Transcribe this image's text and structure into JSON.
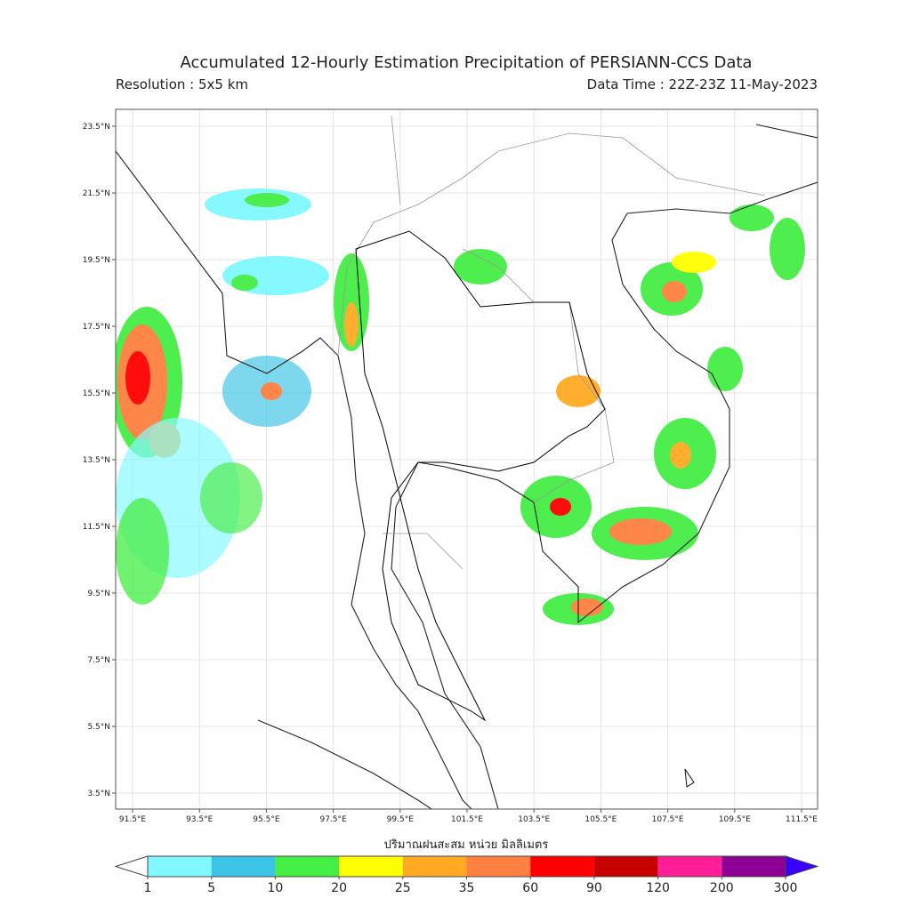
{
  "header": {
    "title": "Accumulated 12-Hourly Estimation Precipitation of PERSIANN-CCS Data",
    "resolution": "Resolution : 5x5 km",
    "data_time": "Data Time : 22Z-23Z 11-May-2023"
  },
  "map": {
    "lat_labels": [
      "23.5°N",
      "21.5°N",
      "19.5°N",
      "17.5°N",
      "15.5°N",
      "13.5°N",
      "11.5°N",
      "9.5°N",
      "7.5°N",
      "5.5°N",
      "3.5°N"
    ],
    "lon_labels": [
      "91.5°E",
      "93.5°E",
      "95.5°E",
      "97.5°E",
      "99.5°E",
      "101.5°E",
      "103.5°E",
      "105.5°E",
      "107.5°E",
      "109.5°E",
      "111.5°E"
    ]
  },
  "colorbar": {
    "label": "ปริมาณฝนสะสม หน่วย มิลลิเมตร",
    "levels": [
      1,
      5,
      10,
      20,
      25,
      35,
      60,
      90,
      120,
      200,
      300
    ],
    "colors": [
      "#80f8ff",
      "#3cc3e6",
      "#44ee44",
      "#ffff00",
      "#ffaa22",
      "#ff8040",
      "#ff0000",
      "#c80000",
      "#ff1e96",
      "#8c0096"
    ],
    "under_color": "#ffffff",
    "over_color": "#3a00ff"
  }
}
